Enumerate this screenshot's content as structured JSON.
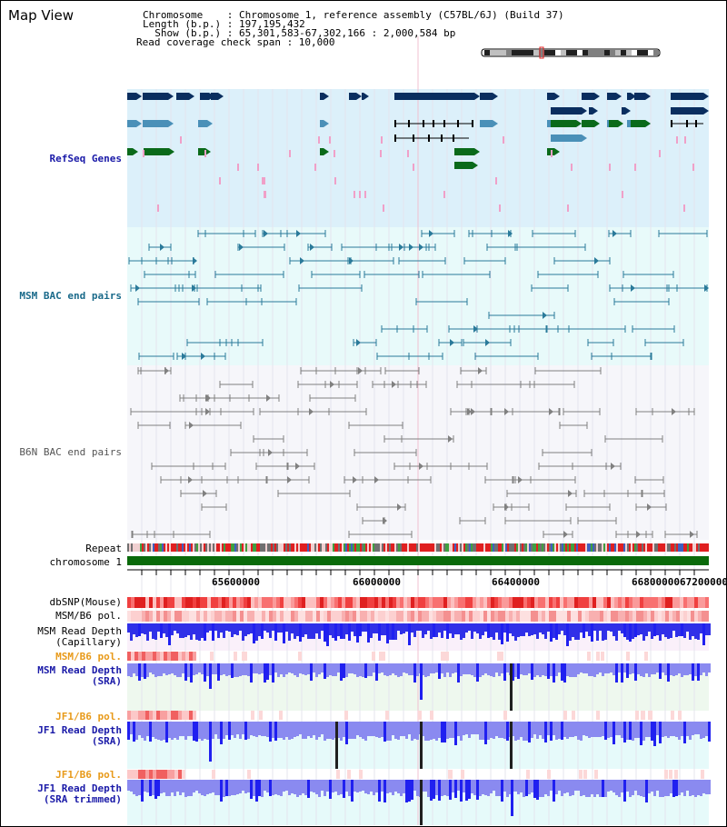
{
  "page": {
    "title": "Map View"
  },
  "header": {
    "chromosome_label": "Chromosome    : Chromosome 1, reference assembly (C57BL/6J) (Build 37)",
    "length_label": "Length (b.p.) : 197,195,432",
    "show_label": "  Show (b.p.) : 65,301,583-67,302,166 : 2,000,584 bp",
    "coverage_label": "Read coverage check span : 10,000"
  },
  "tracks": {
    "refseq": "RefSeq Genes",
    "msm_bac": "MSM BAC end pairs",
    "b6n_bac": "B6N BAC end pairs",
    "repeat": "Repeat",
    "chromosome": "chromosome 1",
    "dbsnp": "dbSNP(Mouse)",
    "msm_b6_pol_1": "MSM/B6 pol.",
    "msm_read_depth_cap_1": "MSM Read Depth",
    "msm_read_depth_cap_2": "(Capillary)",
    "msm_b6_pol_2": "MSM/B6 pol.",
    "msm_read_depth_sra_1": "MSM Read Depth",
    "msm_read_depth_sra_2": "(SRA)",
    "jf1_b6_pol_1": "JF1/B6 pol.",
    "jf1_read_depth_sra_1": "JF1 Read Depth",
    "jf1_read_depth_sra_2": "(SRA)",
    "jf1_b6_pol_2": "JF1/B6 pol.",
    "jf1_trimmed_1": "JF1 Read Depth",
    "jf1_trimmed_2": "(SRA trimmed)"
  },
  "axis": {
    "ticks": [
      "65600000",
      "66000000",
      "66400000",
      "66800000",
      "67200000"
    ]
  },
  "colors": {
    "refseq_bg": "#dcf0fa",
    "msm_bg": "#e8fafa",
    "b6n_bg": "#f4f4fa",
    "gene_dark": "#0a2e5f",
    "gene_mid": "#4a90b8",
    "gene_green": "#0a6a1a",
    "gene_pink": "#f0a0c8",
    "msm_line": "#2a7a9a",
    "b6n_line": "#808080",
    "chromosome_bar": "#0a6a0a",
    "depth_blue": "#2020f0",
    "depth_light": "#8a8af0",
    "label_blue": "#1a1aa8",
    "label_teal": "#1a6a8a",
    "label_orange": "#e89a1a"
  }
}
